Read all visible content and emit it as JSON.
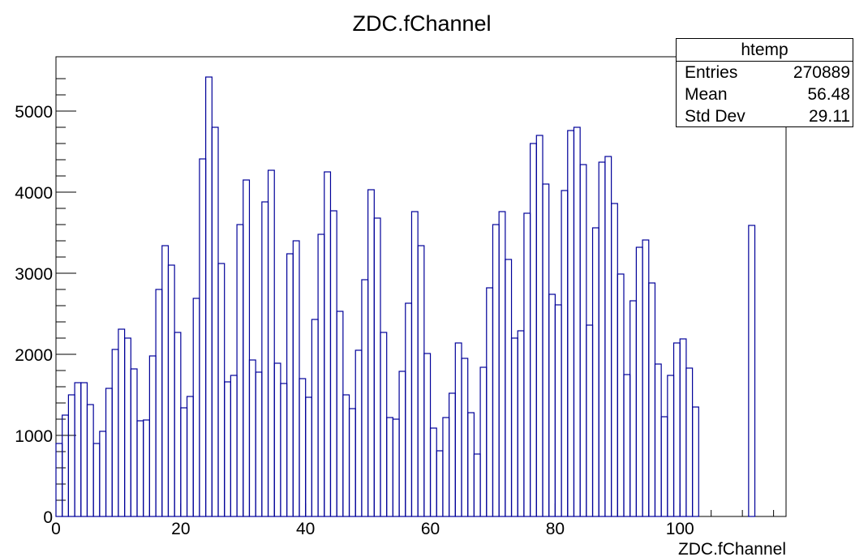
{
  "chart_data": {
    "type": "histogram",
    "title": "ZDC.fChannel",
    "xlabel": "ZDC.fChannel",
    "ylabel": "",
    "xlim": [
      0,
      117
    ],
    "ylim": [
      0,
      5670
    ],
    "x_ticks": [
      "0",
      "20",
      "40",
      "60",
      "80",
      "100"
    ],
    "y_ticks": [
      "0",
      "1000",
      "2000",
      "3000",
      "4000",
      "5000"
    ],
    "bin_width": 1,
    "x_start": 0,
    "values": [
      900,
      1250,
      1500,
      1650,
      1650,
      1380,
      900,
      1050,
      1580,
      2060,
      2310,
      2200,
      1820,
      1180,
      1190,
      1980,
      2800,
      3340,
      3100,
      2270,
      1340,
      1480,
      2690,
      4410,
      5420,
      4800,
      3120,
      1660,
      1740,
      3600,
      4150,
      1930,
      1780,
      3880,
      4270,
      1890,
      1640,
      3240,
      3400,
      1700,
      1470,
      2430,
      3480,
      4250,
      3770,
      2530,
      1500,
      1330,
      2050,
      2920,
      4030,
      3680,
      2270,
      1220,
      1200,
      1790,
      2630,
      3760,
      3340,
      2010,
      1090,
      810,
      1220,
      1520,
      2140,
      1950,
      1280,
      770,
      1840,
      2820,
      3600,
      3760,
      3170,
      2200,
      2290,
      3740,
      4600,
      4700,
      4100,
      2740,
      2610,
      4020,
      4760,
      4800,
      4340,
      2360,
      3560,
      4370,
      4440,
      3860,
      2990,
      1750,
      2660,
      3320,
      3410,
      2880,
      1880,
      1230,
      1740,
      2140,
      2190,
      1830,
      1350,
      0,
      0,
      0,
      0,
      0,
      0,
      0,
      0,
      3590
    ],
    "line_color": "#000099",
    "stats": {
      "title": "htemp",
      "rows": [
        {
          "label": "Entries",
          "value": "270889"
        },
        {
          "label": "Mean",
          "value": "56.48"
        },
        {
          "label": "Std Dev",
          "value": "29.11"
        }
      ]
    }
  }
}
